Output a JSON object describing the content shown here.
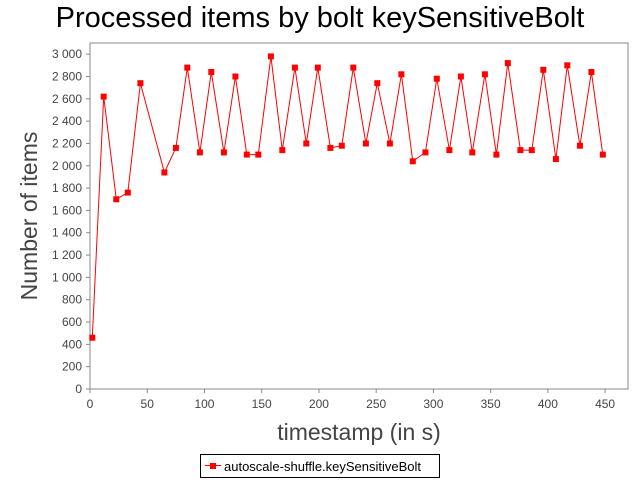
{
  "chart_data": {
    "type": "line",
    "title": "Processed items by bolt keySensitiveBolt",
    "xlabel": "timestamp (in s)",
    "ylabel": "Number of items",
    "xlim": [
      0,
      470
    ],
    "ylim": [
      0,
      3100
    ],
    "xticks": [
      0,
      50,
      100,
      150,
      200,
      250,
      300,
      350,
      400,
      450
    ],
    "yticks": [
      0,
      200,
      400,
      600,
      800,
      1000,
      1200,
      1400,
      1600,
      1800,
      2000,
      2200,
      2400,
      2600,
      2800,
      3000
    ],
    "ytick_labels": [
      "0",
      "200",
      "400",
      "600",
      "800",
      "1 000",
      "1 200",
      "1 400",
      "1 600",
      "1 800",
      "2 000",
      "2 200",
      "2 400",
      "2 600",
      "2 800",
      "3 000"
    ],
    "grid": false,
    "legend_position": "bottom-center",
    "series": [
      {
        "name": "autoscale-shuffle.keySensitiveBolt",
        "color": "#ff0000",
        "marker": "square",
        "x": [
          2,
          12,
          23,
          33,
          44,
          65,
          75,
          85,
          96,
          106,
          117,
          127,
          137,
          147,
          158,
          168,
          179,
          189,
          199,
          210,
          220,
          230,
          241,
          251,
          262,
          272,
          282,
          293,
          303,
          314,
          324,
          334,
          345,
          355,
          365,
          376,
          386,
          396,
          407,
          417,
          428,
          438,
          448
        ],
        "y": [
          460,
          2620,
          1700,
          1760,
          2740,
          1940,
          2160,
          2880,
          2120,
          2840,
          2120,
          2800,
          2100,
          2100,
          2980,
          2140,
          2880,
          2200,
          2880,
          2160,
          2180,
          2880,
          2200,
          2740,
          2200,
          2820,
          2040,
          2120,
          2780,
          2140,
          2800,
          2120,
          2820,
          2100,
          2920,
          2140,
          2140,
          2860,
          2060,
          2900,
          2180,
          2840,
          2100
        ]
      }
    ]
  }
}
